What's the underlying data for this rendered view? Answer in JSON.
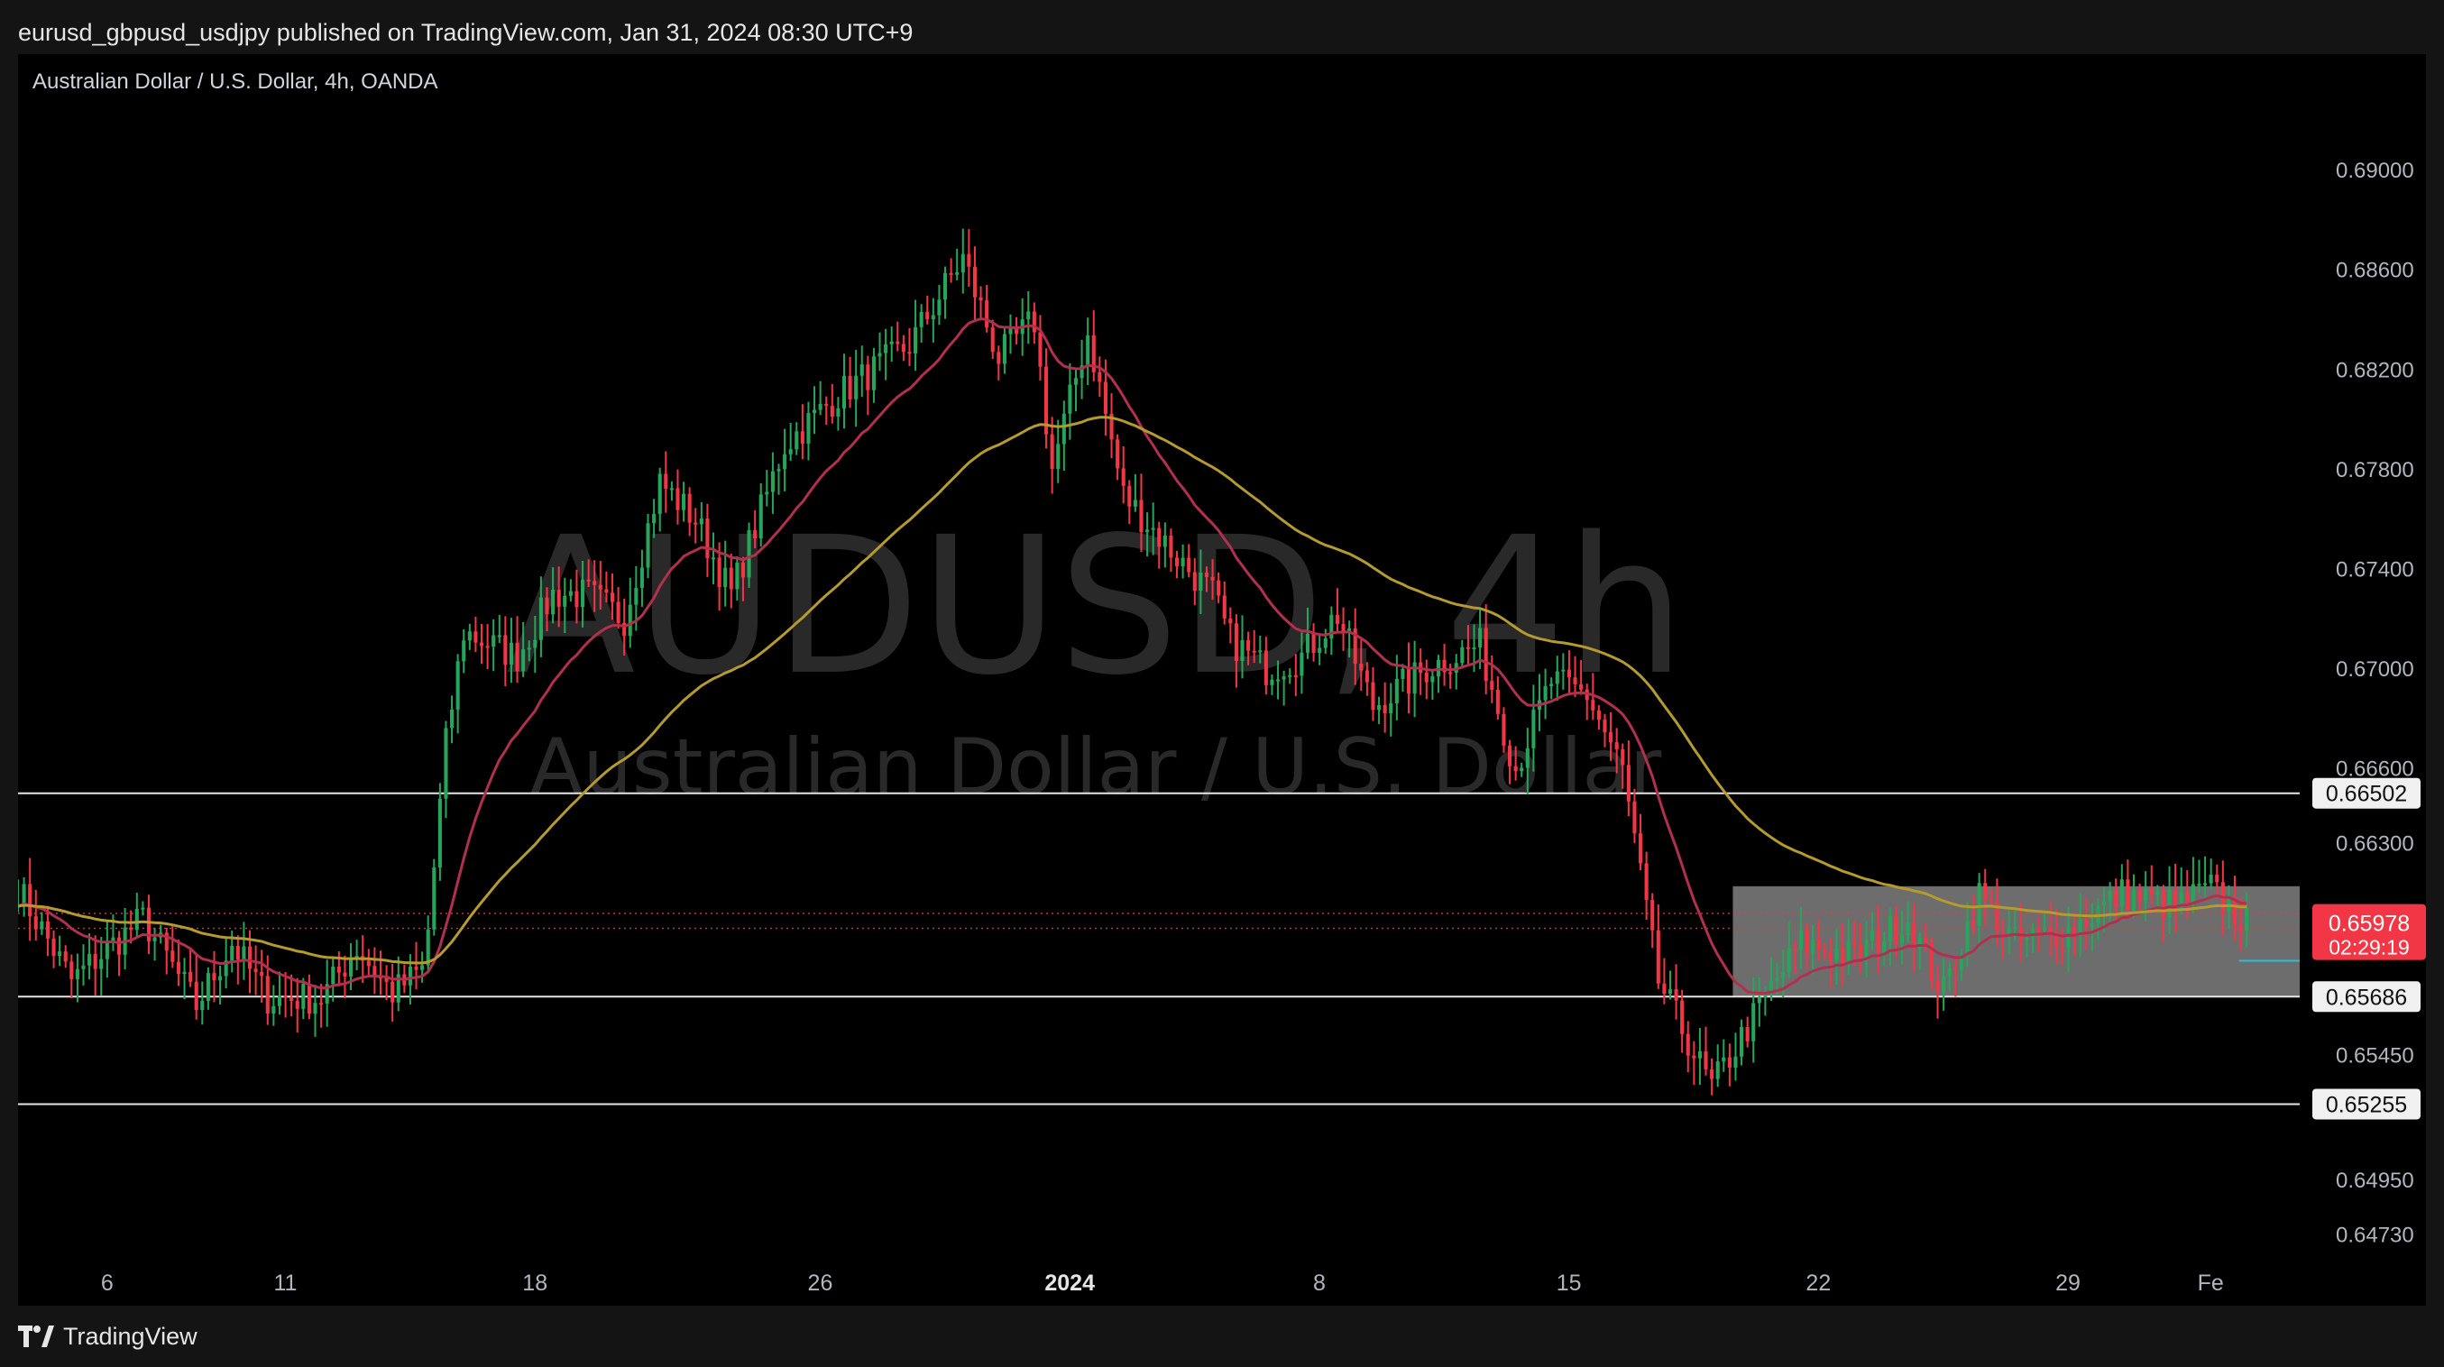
{
  "header": {
    "published_caption": "eurusd_gbpusd_usdjpy published on TradingView.com, Jan 31, 2024 08:30 UTC+9"
  },
  "footer": {
    "brand": "TradingView"
  },
  "colors": {
    "background": "#000000",
    "candle_up": "#26a65b",
    "candle_down": "#f23645",
    "ema_fast": "#b22f4e",
    "ema_slow": "#b59a2e",
    "level_line": "#e6e6e6",
    "price_badge": "#f23645",
    "range_box": "#8c8c8c",
    "cyan_line": "#22c1d6"
  },
  "chart_data": {
    "type": "candlestick",
    "title": "Australian Dollar / U.S. Dollar, 4h, OANDA",
    "watermark_symbol": "AUDUSD, 4h",
    "watermark_name": "Australian Dollar / U.S. Dollar",
    "x_ticks": [
      {
        "label": "6",
        "x": 2.5,
        "bold": false
      },
      {
        "label": "11",
        "x": 7.5,
        "bold": false
      },
      {
        "label": "18",
        "x": 14.5,
        "bold": false
      },
      {
        "label": "26",
        "x": 22.5,
        "bold": false
      },
      {
        "label": "2024",
        "x": 29.5,
        "bold": true
      },
      {
        "label": "8",
        "x": 36.5,
        "bold": false
      },
      {
        "label": "15",
        "x": 43.5,
        "bold": false
      },
      {
        "label": "22",
        "x": 50.5,
        "bold": false
      },
      {
        "label": "29",
        "x": 57.5,
        "bold": false
      },
      {
        "label": "Fe",
        "x": 61.5,
        "bold": false
      }
    ],
    "y_ticks": [
      0.69,
      0.686,
      0.682,
      0.678,
      0.674,
      0.67,
      0.666,
      0.663,
      0.6545,
      0.6495,
      0.6473
    ],
    "y_tick_labels": [
      "0.69000",
      "0.68600",
      "0.68200",
      "0.67800",
      "0.67400",
      "0.67000",
      "0.66600",
      "0.66300",
      "0.65450",
      "0.64950",
      "0.64730"
    ],
    "x_range": [
      0,
      64
    ],
    "y_range": [
      0.6462,
      0.6925
    ],
    "levels": [
      {
        "value": 0.66502,
        "label": "0.66502"
      },
      {
        "value": 0.65686,
        "label": "0.65686"
      },
      {
        "value": 0.65255,
        "label": "0.65255"
      }
    ],
    "current_price": {
      "value": 0.65978,
      "label": "0.65978",
      "countdown": "02:29:19"
    },
    "range_box": {
      "x_start": 48.1,
      "x_end": 64.0,
      "y_low": 0.65686,
      "y_high": 0.66129
    },
    "cyan_line": {
      "x_start": 62.3,
      "y": 0.6583
    },
    "dotted_lines": [
      0.6602,
      0.6596
    ],
    "anchors": [
      [
        0.0,
        0.6612
      ],
      [
        1.5,
        0.6575
      ],
      [
        3.5,
        0.66
      ],
      [
        5.0,
        0.6565
      ],
      [
        6.0,
        0.659
      ],
      [
        7.0,
        0.6568
      ],
      [
        8.5,
        0.6568
      ],
      [
        9.5,
        0.6588
      ],
      [
        10.5,
        0.657
      ],
      [
        11.4,
        0.658
      ],
      [
        12.0,
        0.667
      ],
      [
        12.5,
        0.6715
      ],
      [
        14.0,
        0.6705
      ],
      [
        15.0,
        0.673
      ],
      [
        16.0,
        0.673
      ],
      [
        17.0,
        0.672
      ],
      [
        18.0,
        0.6775
      ],
      [
        19.0,
        0.676
      ],
      [
        20.0,
        0.673
      ],
      [
        21.5,
        0.679
      ],
      [
        23.0,
        0.681
      ],
      [
        25.0,
        0.683
      ],
      [
        26.5,
        0.6865
      ],
      [
        27.5,
        0.6825
      ],
      [
        28.5,
        0.684
      ],
      [
        29.0,
        0.678
      ],
      [
        30.0,
        0.6835
      ],
      [
        31.0,
        0.677
      ],
      [
        32.5,
        0.6745
      ],
      [
        33.5,
        0.673
      ],
      [
        34.0,
        0.6712
      ],
      [
        35.0,
        0.67
      ],
      [
        36.0,
        0.6705
      ],
      [
        37.0,
        0.6722
      ],
      [
        38.0,
        0.6685
      ],
      [
        39.5,
        0.67
      ],
      [
        41.0,
        0.671
      ],
      [
        42.0,
        0.666
      ],
      [
        43.0,
        0.6695
      ],
      [
        44.0,
        0.669
      ],
      [
        45.0,
        0.666
      ],
      [
        46.0,
        0.6575
      ],
      [
        47.5,
        0.6532
      ],
      [
        49.0,
        0.6568
      ],
      [
        50.0,
        0.659
      ],
      [
        51.5,
        0.6585
      ],
      [
        53.0,
        0.66
      ],
      [
        54.0,
        0.657
      ],
      [
        55.0,
        0.661
      ],
      [
        56.0,
        0.659
      ],
      [
        57.5,
        0.6595
      ],
      [
        59.0,
        0.661
      ],
      [
        60.5,
        0.6605
      ],
      [
        61.5,
        0.6612
      ],
      [
        62.5,
        0.6598
      ]
    ]
  }
}
